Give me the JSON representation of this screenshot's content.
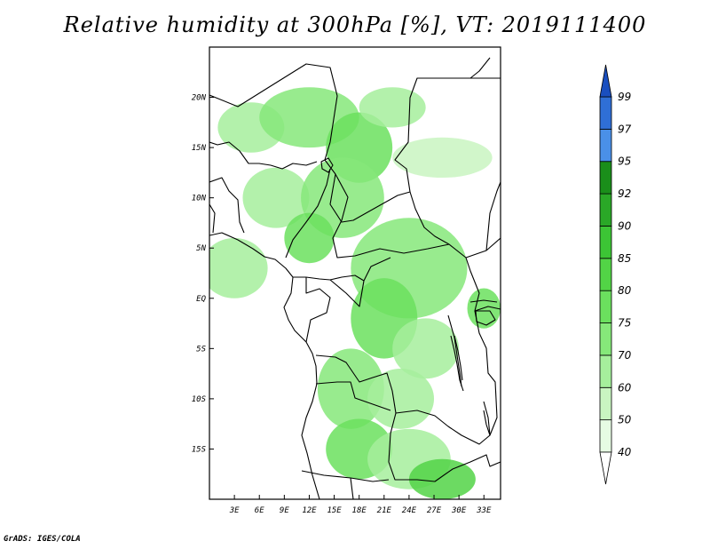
{
  "title": "Relative humidity at 300hPa [%], VT: 2019111400",
  "credit": "GrADS: IGES/COLA",
  "map": {
    "lon_range": [
      0,
      35
    ],
    "lat_range": [
      -20,
      25
    ],
    "lat_ticks": [
      {
        "value": 20,
        "label": "20N"
      },
      {
        "value": 15,
        "label": "15N"
      },
      {
        "value": 10,
        "label": "10N"
      },
      {
        "value": 5,
        "label": "5N"
      },
      {
        "value": 0,
        "label": "EQ"
      },
      {
        "value": -5,
        "label": "5S"
      },
      {
        "value": -10,
        "label": "10S"
      },
      {
        "value": -15,
        "label": "15S"
      }
    ],
    "lon_ticks": [
      {
        "value": 3,
        "label": "3E"
      },
      {
        "value": 6,
        "label": "6E"
      },
      {
        "value": 9,
        "label": "9E"
      },
      {
        "value": 12,
        "label": "12E"
      },
      {
        "value": 15,
        "label": "15E"
      },
      {
        "value": 18,
        "label": "18E"
      },
      {
        "value": 21,
        "label": "21E"
      },
      {
        "value": 24,
        "label": "24E"
      },
      {
        "value": 27,
        "label": "27E"
      },
      {
        "value": 30,
        "label": "30E"
      },
      {
        "value": 33,
        "label": "33E"
      }
    ]
  },
  "colorbar": {
    "levels": [
      40,
      50,
      60,
      70,
      75,
      80,
      85,
      90,
      92,
      95,
      97,
      99
    ],
    "colors": [
      "#e6fbe3",
      "#c9f5c1",
      "#a6ef9c",
      "#86e87a",
      "#6be05e",
      "#52d446",
      "#3cc535",
      "#2aa827",
      "#1a8e1a",
      "#4a90e8",
      "#2f6fd6",
      "#1a4fbf",
      "#1a3fa0"
    ],
    "lower_color": "#ffffff",
    "upper_color": "#1a4fbf"
  },
  "humidity_blobs": [
    {
      "lon": 5,
      "lat": 17,
      "rx": 4,
      "ry": 2.5,
      "level": 60
    },
    {
      "lon": 12,
      "lat": 18,
      "rx": 6,
      "ry": 3,
      "level": 70
    },
    {
      "lon": 18,
      "lat": 15,
      "rx": 4,
      "ry": 3.5,
      "level": 75
    },
    {
      "lon": 22,
      "lat": 19,
      "rx": 4,
      "ry": 2,
      "level": 60
    },
    {
      "lon": 28,
      "lat": 14,
      "rx": 6,
      "ry": 2,
      "level": 50
    },
    {
      "lon": 8,
      "lat": 10,
      "rx": 4,
      "ry": 3,
      "level": 60
    },
    {
      "lon": 16,
      "lat": 10,
      "rx": 5,
      "ry": 4,
      "level": 70
    },
    {
      "lon": 12,
      "lat": 6,
      "rx": 3,
      "ry": 2.5,
      "level": 75
    },
    {
      "lon": 3,
      "lat": 3,
      "rx": 4,
      "ry": 3,
      "level": 60
    },
    {
      "lon": 24,
      "lat": 3,
      "rx": 7,
      "ry": 5,
      "level": 70
    },
    {
      "lon": 21,
      "lat": -2,
      "rx": 4,
      "ry": 4,
      "level": 75
    },
    {
      "lon": 26,
      "lat": -5,
      "rx": 4,
      "ry": 3,
      "level": 60
    },
    {
      "lon": 17,
      "lat": -9,
      "rx": 4,
      "ry": 4,
      "level": 70
    },
    {
      "lon": 23,
      "lat": -10,
      "rx": 4,
      "ry": 3,
      "level": 60
    },
    {
      "lon": 18,
      "lat": -15,
      "rx": 4,
      "ry": 3,
      "level": 75
    },
    {
      "lon": 24,
      "lat": -16,
      "rx": 5,
      "ry": 3,
      "level": 60
    },
    {
      "lon": 28,
      "lat": -18,
      "rx": 4,
      "ry": 2,
      "level": 80
    },
    {
      "lon": 33,
      "lat": -1,
      "rx": 2,
      "ry": 2,
      "level": 75
    }
  ]
}
